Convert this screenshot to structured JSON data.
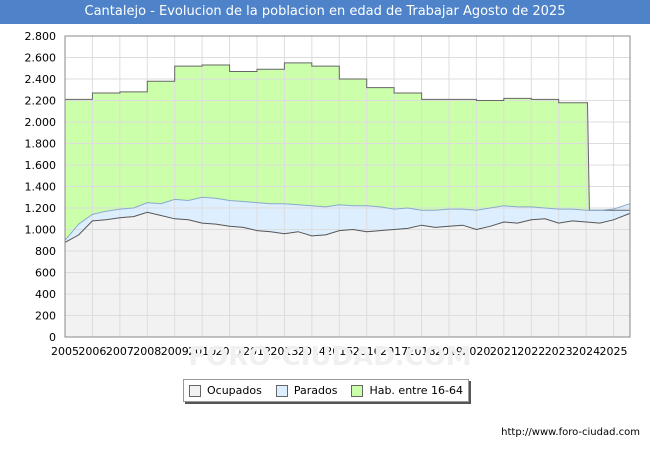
{
  "chart_data": {
    "type": "area",
    "title": "Cantalejo - Evolucion de la poblacion en edad de Trabajar Agosto de 2025",
    "xlabel": "",
    "ylabel": "",
    "xlim": [
      2005,
      2025.6
    ],
    "ylim": [
      0,
      2800
    ],
    "yticks": [
      0,
      200,
      400,
      600,
      800,
      1000,
      1200,
      1400,
      1600,
      1800,
      2000,
      2200,
      2400,
      2600,
      2800
    ],
    "yticklabels": [
      "0",
      "200",
      "400",
      "600",
      "800",
      "1.000",
      "1.200",
      "1.400",
      "1.600",
      "1.800",
      "2.000",
      "2.200",
      "2.400",
      "2.600",
      "2.800"
    ],
    "xticks": [
      2005,
      2006,
      2007,
      2008,
      2009,
      2010,
      2011,
      2012,
      2013,
      2014,
      2015,
      2016,
      2017,
      2018,
      2019,
      2020,
      2021,
      2022,
      2023,
      2024,
      2025
    ],
    "xticklabels": [
      "2005",
      "2006",
      "2007",
      "2008",
      "2009",
      "2010",
      "2011",
      "2012",
      "2013",
      "2014",
      "2015",
      "2016",
      "2017",
      "2018",
      "2019",
      "2020",
      "2021",
      "2022",
      "2023",
      "2024",
      "2025"
    ],
    "grid": true,
    "legend_position": "bottom-center",
    "series": [
      {
        "name": "Hab. entre 16-64",
        "kind": "step",
        "color": "#ccffaa",
        "line_color": "#666666",
        "x": [
          2005,
          2006,
          2007,
          2008,
          2009,
          2010,
          2011,
          2012,
          2013,
          2014,
          2015,
          2016,
          2017,
          2018,
          2019,
          2020,
          2021,
          2022,
          2023,
          2024
        ],
        "values": [
          2210,
          2270,
          2280,
          2380,
          2520,
          2530,
          2470,
          2490,
          2550,
          2520,
          2400,
          2320,
          2270,
          2210,
          2210,
          2200,
          2220,
          2210,
          2180,
          2180
        ]
      },
      {
        "name": "Parados",
        "kind": "line",
        "color": "#ddeeff",
        "line_color": "#88aacc",
        "x": [
          2005,
          2005.5,
          2006,
          2006.5,
          2007,
          2007.5,
          2008,
          2008.5,
          2009,
          2009.5,
          2010,
          2010.5,
          2011,
          2011.5,
          2012,
          2012.5,
          2013,
          2013.5,
          2014,
          2014.5,
          2015,
          2015.5,
          2016,
          2016.5,
          2017,
          2017.5,
          2018,
          2018.5,
          2019,
          2019.5,
          2020,
          2020.5,
          2021,
          2021.5,
          2022,
          2022.5,
          2023,
          2023.5,
          2024,
          2024.5,
          2025,
          2025.6
        ],
        "values": [
          900,
          1050,
          1140,
          1170,
          1190,
          1200,
          1250,
          1240,
          1280,
          1270,
          1300,
          1290,
          1270,
          1260,
          1250,
          1240,
          1240,
          1230,
          1220,
          1210,
          1230,
          1220,
          1220,
          1210,
          1190,
          1200,
          1180,
          1180,
          1190,
          1190,
          1180,
          1200,
          1220,
          1210,
          1210,
          1200,
          1190,
          1190,
          1180,
          1180,
          1190,
          1240
        ]
      },
      {
        "name": "Ocupados",
        "kind": "line",
        "color": "#f2f2f2",
        "line_color": "#555555",
        "x": [
          2005,
          2005.5,
          2006,
          2006.5,
          2007,
          2007.5,
          2008,
          2008.5,
          2009,
          2009.5,
          2010,
          2010.5,
          2011,
          2011.5,
          2012,
          2012.5,
          2013,
          2013.5,
          2014,
          2014.5,
          2015,
          2015.5,
          2016,
          2016.5,
          2017,
          2017.5,
          2018,
          2018.5,
          2019,
          2019.5,
          2020,
          2020.5,
          2021,
          2021.5,
          2022,
          2022.5,
          2023,
          2023.5,
          2024,
          2024.5,
          2025,
          2025.6
        ],
        "values": [
          880,
          950,
          1080,
          1090,
          1110,
          1120,
          1160,
          1130,
          1100,
          1090,
          1060,
          1050,
          1030,
          1020,
          990,
          980,
          960,
          980,
          940,
          950,
          990,
          1000,
          980,
          990,
          1000,
          1010,
          1040,
          1020,
          1030,
          1040,
          1000,
          1030,
          1070,
          1060,
          1090,
          1100,
          1060,
          1080,
          1070,
          1060,
          1090,
          1150
        ]
      }
    ]
  },
  "legend": {
    "items": [
      {
        "label": "Ocupados",
        "color": "#f2f2f2"
      },
      {
        "label": "Parados",
        "color": "#ddeeff"
      },
      {
        "label": "Hab. entre 16-64",
        "color": "#ccffaa"
      }
    ]
  },
  "watermark": "FORO-CIUDAD.COM",
  "source": "http://www.foro-ciudad.com"
}
